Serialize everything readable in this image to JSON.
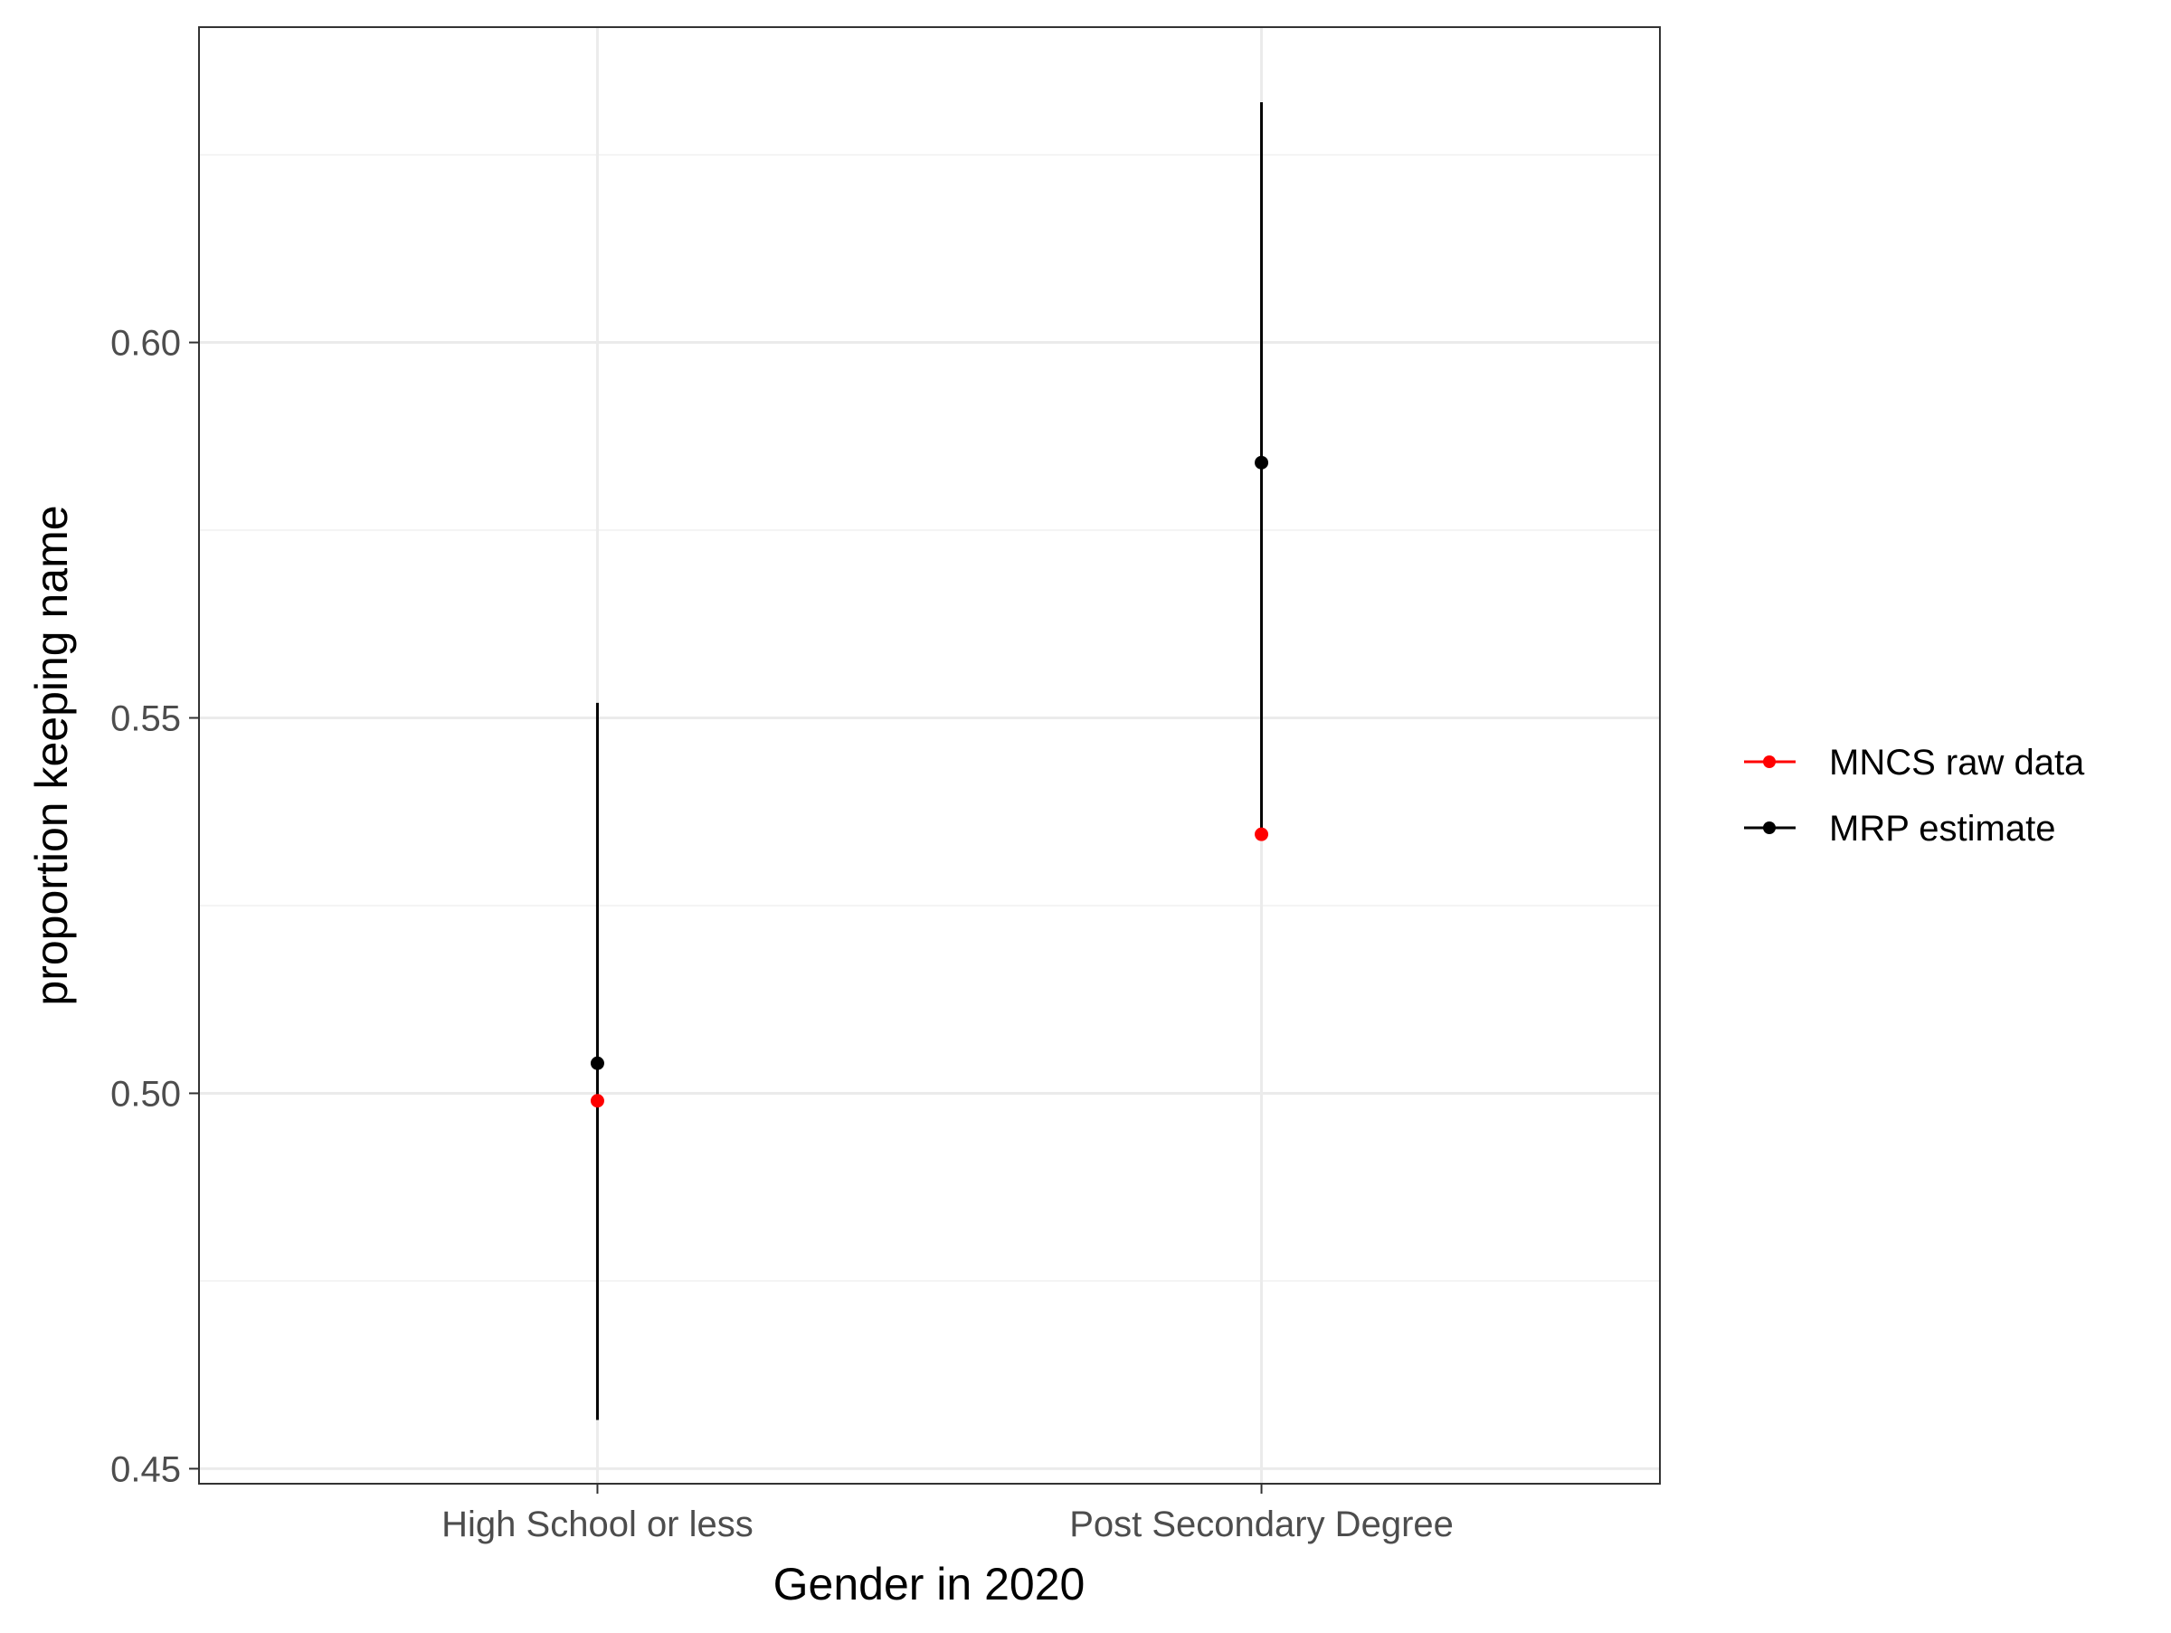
{
  "chart_data": {
    "type": "scatter",
    "title": "",
    "xlabel": "Gender in 2020",
    "ylabel": "proportion keeping name",
    "categories": [
      "High School or less",
      "Post Secondary Degree"
    ],
    "ylim": [
      0.448,
      0.642
    ],
    "yticks": [
      0.45,
      0.5,
      0.55,
      0.6
    ],
    "ytick_labels": [
      "0.45",
      "0.50",
      "0.55",
      "0.60"
    ],
    "grid": true,
    "legend_position": "right",
    "series": [
      {
        "name": "MNCS raw data",
        "color": "#ff0000",
        "values": [
          0.499,
          0.5345
        ]
      },
      {
        "name": "MRP estimate",
        "color": "#000000",
        "values": [
          0.504,
          0.584
        ],
        "lower": [
          0.4565,
          0.535
        ],
        "upper": [
          0.552,
          0.632
        ]
      }
    ]
  }
}
